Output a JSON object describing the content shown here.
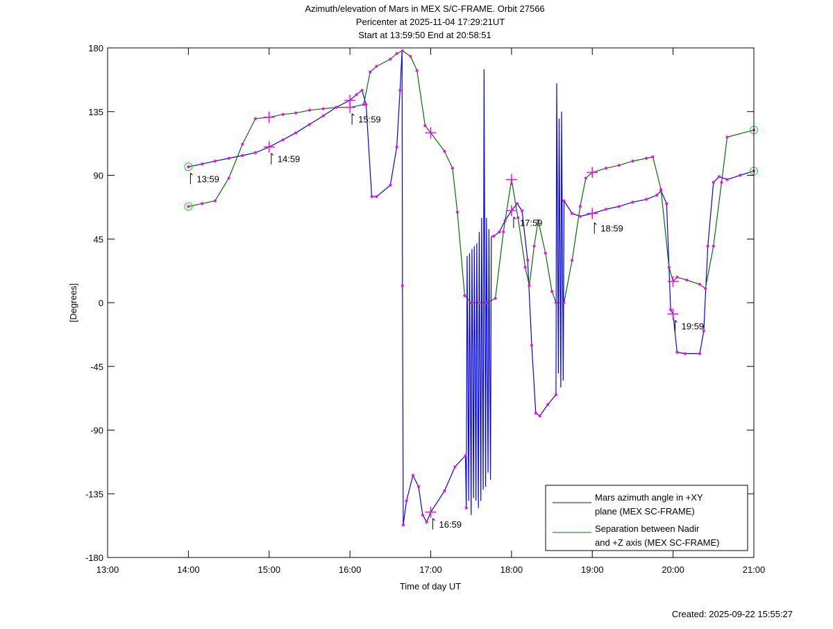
{
  "chart_data": {
    "type": "line",
    "title": [
      "Azimuth/elevation of Mars in MEX S/C-FRAME.  Orbit 27566",
      "Pericenter at 2025-11-04 17:29:21UT",
      "Start at 13:59:50 End at 20:58:51"
    ],
    "xlabel": "Time of day UT",
    "ylabel": "[Degrees]",
    "xlim": [
      13,
      21
    ],
    "ylim": [
      -180,
      180
    ],
    "xticks": [
      13,
      14,
      15,
      16,
      17,
      18,
      19,
      20,
      21
    ],
    "xtick_labels": [
      "13:00",
      "14:00",
      "15:00",
      "16:00",
      "17:00",
      "18:00",
      "19:00",
      "20:00",
      "21:00"
    ],
    "yticks": [
      180,
      135,
      90,
      45,
      0,
      -45,
      -90,
      -135,
      -180
    ],
    "ytick_labels": [
      "180",
      "135",
      "90",
      "45",
      "0",
      "-45",
      "-90",
      "-135",
      "-180"
    ],
    "legend_position": "bottom-right",
    "series": [
      {
        "name": "Mars azimuth angle in +XY plane (MEX SC-FRAME)",
        "legend_lines": [
          "Mars azimuth angle in +XY",
          "plane (MEX SC-FRAME)"
        ],
        "color": "#0000ff",
        "x": [
          14.0,
          14.17,
          14.33,
          14.5,
          14.67,
          14.83,
          15.0,
          15.17,
          15.33,
          15.5,
          15.67,
          15.83,
          16.0,
          16.08,
          16.15,
          16.2,
          16.27,
          16.33,
          16.5,
          16.58,
          16.62,
          16.645,
          16.65,
          16.66,
          16.7,
          16.78,
          16.85,
          16.9,
          16.95,
          17.0,
          17.17,
          17.3,
          17.43,
          17.44,
          17.45,
          17.47,
          17.48,
          17.5,
          17.51,
          17.53,
          17.54,
          17.56,
          17.57,
          17.59,
          17.6,
          17.62,
          17.63,
          17.65,
          17.66,
          17.68,
          17.69,
          17.71,
          17.72,
          17.74,
          17.75,
          17.76,
          17.78,
          17.85,
          17.92,
          18.0,
          18.07,
          18.13,
          18.2,
          18.25,
          18.3,
          18.35,
          18.45,
          18.55,
          18.56,
          18.58,
          18.59,
          18.61,
          18.62,
          18.64,
          18.65,
          18.75,
          18.85,
          19.0,
          19.17,
          19.33,
          19.5,
          19.67,
          19.8,
          19.85,
          19.92,
          19.97,
          20.0,
          20.05,
          20.15,
          20.33,
          20.38,
          20.43,
          20.5,
          20.57,
          20.67,
          20.83,
          21.0
        ],
        "y": [
          96,
          98,
          100,
          102,
          104,
          106,
          110,
          115,
          120,
          126,
          132,
          138,
          143,
          147,
          150,
          140,
          75,
          75,
          83,
          110,
          150,
          178,
          12,
          -157,
          -140,
          -122,
          -130,
          -150,
          -155,
          -148,
          -133,
          -116,
          -108,
          -145,
          33,
          -140,
          35,
          -150,
          38,
          -138,
          40,
          -140,
          42,
          -145,
          50,
          -140,
          60,
          -132,
          165,
          -130,
          60,
          -120,
          52,
          -125,
          46,
          47,
          47,
          50,
          58,
          65,
          70,
          65,
          30,
          -30,
          -78,
          -80,
          -72,
          -65,
          155,
          -50,
          130,
          -60,
          135,
          -55,
          72,
          63,
          61,
          63,
          66,
          68,
          71,
          73,
          76,
          79,
          70,
          -5,
          -8,
          -35,
          -36,
          -36,
          -20,
          40,
          85,
          89,
          87,
          90,
          93
        ]
      },
      {
        "name": "Separation between Nadir and +Z axis (MEX SC-FRAME)",
        "legend_lines": [
          "Separation between Nadir",
          "and +Z axis (MEX SC-FRAME)"
        ],
        "color": "#007000",
        "x": [
          14.0,
          14.17,
          14.33,
          14.5,
          14.67,
          14.83,
          15.0,
          15.17,
          15.33,
          15.5,
          15.67,
          15.83,
          16.0,
          16.17,
          16.25,
          16.33,
          16.5,
          16.58,
          16.65,
          16.75,
          16.83,
          16.93,
          17.0,
          17.17,
          17.27,
          17.33,
          17.42,
          17.5,
          17.6,
          17.7,
          17.8,
          17.9,
          18.0,
          18.08,
          18.17,
          18.22,
          18.28,
          18.33,
          18.42,
          18.5,
          18.55,
          18.65,
          18.75,
          18.85,
          18.92,
          19.0,
          19.17,
          19.33,
          19.5,
          19.67,
          19.75,
          19.85,
          19.95,
          20.0,
          20.05,
          20.17,
          20.33,
          20.4,
          20.5,
          20.6,
          20.67,
          21.0
        ],
        "y": [
          68,
          70,
          72,
          88,
          112,
          130,
          131,
          133,
          134,
          136,
          137,
          138,
          138,
          140,
          163,
          167,
          172,
          176,
          178,
          174,
          164,
          125,
          120,
          107,
          95,
          64,
          5,
          0,
          0,
          0,
          3,
          50,
          87,
          60,
          25,
          12,
          40,
          58,
          35,
          8,
          0,
          0,
          30,
          68,
          88,
          92,
          95,
          97,
          100,
          102,
          103,
          80,
          25,
          15,
          18,
          16,
          13,
          10,
          40,
          85,
          117,
          122
        ]
      }
    ],
    "annotations": [
      {
        "text": "13:59",
        "x": 14.0,
        "y": 96
      },
      {
        "text": "14:59",
        "x": 15.0,
        "y": 110
      },
      {
        "text": "15:59",
        "x": 16.0,
        "y": 138
      },
      {
        "text": "16:59",
        "x": 17.0,
        "y": -148
      },
      {
        "text": "17:59",
        "x": 18.0,
        "y": 65
      },
      {
        "text": "18:59",
        "x": 19.0,
        "y": 61
      },
      {
        "text": "19:59",
        "x": 20.0,
        "y": -8
      }
    ],
    "created": "Created: 2025-09-22 15:55:27"
  }
}
